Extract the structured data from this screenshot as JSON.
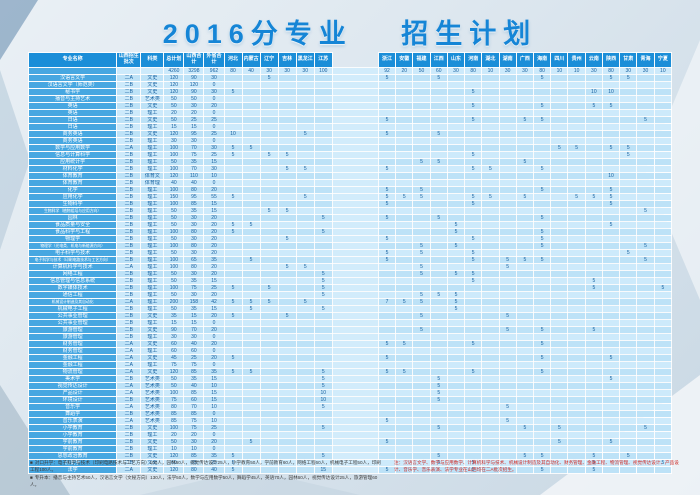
{
  "title": {
    "part1": "2016分专业",
    "part2": "招生计划"
  },
  "colors": {
    "title_blue": "#1585d6",
    "header_bg": "#1b8ed8",
    "name_col_bg": "#47a7e1",
    "row_light": "#cdeafb",
    "row_dark": "#bde2f7",
    "cell_text": "#155f9e",
    "red_note": "#cf2b26"
  },
  "table": {
    "fixed_headers": [
      "专业名称",
      "山西招生批次",
      "科类",
      "总计划",
      "山西合计",
      "外省合计"
    ],
    "province_group1": [
      "河北",
      "内蒙古",
      "辽宁",
      "吉林",
      "黑龙江",
      "江苏"
    ],
    "province_group2": [
      "浙江",
      "安徽",
      "福建",
      "江西",
      "山东",
      "河南",
      "湖北",
      "湖南",
      "广西",
      "海南",
      "四川",
      "贵州",
      "云南",
      "陕西",
      "甘肃",
      "青海",
      "宁夏"
    ],
    "total_row": {
      "name": "",
      "batch": "",
      "type": "",
      "total": "4260",
      "shanxi": "3298",
      "other": "962",
      "provinces": {
        "河北": "80",
        "内蒙古": "40",
        "辽宁": "30",
        "吉林": "30",
        "黑龙江": "30",
        "江苏": "100",
        "浙江": "92",
        "安徽": "20",
        "福建": "50",
        "江西": "60",
        "山东": "30",
        "河南": "80",
        "湖北": "10",
        "湖南": "30",
        "广西": "30",
        "海南": "80",
        "四川": "10",
        "贵州": "10",
        "云南": "30",
        "陕西": "80",
        "甘肃": "30",
        "青海": "30",
        "宁夏": "10"
      }
    },
    "rows": [
      {
        "name": "汉语言文学",
        "batch": "二A",
        "type": "文史",
        "total": "120",
        "shanxi": "90",
        "other": "30",
        "provinces": {
          "辽宁": "5",
          "浙江": "5",
          "江西": "5",
          "海南": "5",
          "陕西": "5",
          "甘肃": "5"
        }
      },
      {
        "name": "汉语言文学（师范类）",
        "batch": "二B",
        "type": "文史",
        "total": "120",
        "shanxi": "120",
        "other": "0",
        "provinces": {}
      },
      {
        "name": "秘书学",
        "batch": "二B",
        "type": "文史",
        "total": "120",
        "shanxi": "90",
        "other": "30",
        "provinces": {
          "河北": "5",
          "河南": "5",
          "云南": "10",
          "陕西": "10"
        }
      },
      {
        "name": "播音与主持艺术",
        "batch": "二B",
        "type": "艺术类",
        "total": "50",
        "shanxi": "50",
        "other": "0",
        "provinces": {}
      },
      {
        "name": "英语",
        "batch": "二B",
        "type": "文史",
        "total": "50",
        "shanxi": "30",
        "other": "20",
        "provinces": {
          "河南": "5",
          "海南": "5",
          "云南": "5",
          "陕西": "5"
        }
      },
      {
        "name": "英语",
        "batch": "二B",
        "type": "理工",
        "total": "20",
        "shanxi": "20",
        "other": "0",
        "provinces": {}
      },
      {
        "name": "日语",
        "batch": "二B",
        "type": "文史",
        "total": "50",
        "shanxi": "25",
        "other": "25",
        "provinces": {
          "浙江": "5",
          "河南": "5",
          "广西": "5",
          "海南": "5",
          "青海": "5"
        }
      },
      {
        "name": "日语",
        "batch": "二B",
        "type": "理工",
        "total": "15",
        "shanxi": "15",
        "other": "0",
        "provinces": {}
      },
      {
        "name": "商务英语",
        "batch": "二B",
        "type": "文史",
        "total": "120",
        "shanxi": "95",
        "other": "25",
        "provinces": {
          "河北": "10",
          "黑龙江": "5",
          "浙江": "5",
          "江西": "5"
        }
      },
      {
        "name": "商务英语",
        "batch": "二B",
        "type": "理工",
        "total": "30",
        "shanxi": "30",
        "other": "0",
        "provinces": {}
      },
      {
        "name": "数学与应用数学",
        "batch": "二A",
        "type": "理工",
        "total": "100",
        "shanxi": "70",
        "other": "30",
        "provinces": {
          "河北": "5",
          "内蒙古": "5",
          "四川": "5",
          "贵州": "5",
          "陕西": "5",
          "甘肃": "5"
        }
      },
      {
        "name": "信息与计算科学",
        "batch": "二B",
        "type": "理工",
        "total": "100",
        "shanxi": "75",
        "other": "25",
        "provinces": {
          "河北": "5",
          "辽宁": "5",
          "吉林": "5",
          "河南": "5",
          "甘肃": "5"
        }
      },
      {
        "name": "应用统计学",
        "batch": "二B",
        "type": "理工",
        "total": "50",
        "shanxi": "35",
        "other": "15",
        "provinces": {
          "福建": "5",
          "江西": "5",
          "广西": "5"
        }
      },
      {
        "name": "材料化学",
        "batch": "二B",
        "type": "理工",
        "total": "100",
        "shanxi": "70",
        "other": "30",
        "provinces": {
          "吉林": "5",
          "黑龙江": "5",
          "浙江": "5",
          "河南": "5",
          "湖北": "5",
          "海南": "5"
        }
      },
      {
        "name": "体育教育",
        "batch": "二B",
        "type": "体育文",
        "total": "120",
        "shanxi": "110",
        "other": "10",
        "provinces": {
          "陕西": "10"
        }
      },
      {
        "name": "体育教育",
        "batch": "二B",
        "type": "体育理",
        "total": "40",
        "shanxi": "40",
        "other": "0",
        "provinces": {}
      },
      {
        "name": "化学",
        "batch": "二B",
        "type": "理工",
        "total": "100",
        "shanxi": "80",
        "other": "20",
        "provinces": {
          "浙江": "5",
          "福建": "5",
          "海南": "5",
          "陕西": "5"
        }
      },
      {
        "name": "应用化学",
        "batch": "二B",
        "type": "理工",
        "total": "150",
        "shanxi": "95",
        "other": "55",
        "provinces": {
          "河北": "5",
          "黑龙江": "5",
          "浙江": "5",
          "安徽": "5",
          "福建": "5",
          "河南": "5",
          "湖北": "5",
          "广西": "5",
          "贵州": "5",
          "云南": "5",
          "陕西": "5"
        }
      },
      {
        "name": "生物科学",
        "batch": "二B",
        "type": "理工",
        "total": "100",
        "shanxi": "85",
        "other": "15",
        "provinces": {
          "浙江": "5",
          "河南": "5",
          "陕西": "5"
        }
      },
      {
        "name": "生物科学（植物组培与应用方向）",
        "batch": "二B",
        "type": "理工",
        "total": "50",
        "shanxi": "35",
        "other": "15",
        "provinces": {
          "辽宁": "5",
          "吉林": "5",
          "青海": "5"
        }
      },
      {
        "name": "园林",
        "batch": "二B",
        "type": "理工",
        "total": "50",
        "shanxi": "30",
        "other": "20",
        "provinces": {
          "江苏": "5",
          "浙江": "5",
          "江西": "5",
          "海南": "5"
        }
      },
      {
        "name": "食品质量与安全",
        "batch": "二B",
        "type": "理工",
        "total": "50",
        "shanxi": "30",
        "other": "20",
        "provinces": {
          "河北": "5",
          "内蒙古": "5",
          "山东": "5",
          "陕西": "5"
        }
      },
      {
        "name": "食品科学与工程",
        "batch": "二B",
        "type": "理工",
        "total": "100",
        "shanxi": "80",
        "other": "20",
        "provinces": {
          "河北": "5",
          "江苏": "5",
          "山东": "5",
          "海南": "5"
        }
      },
      {
        "name": "物理学",
        "batch": "二B",
        "type": "理工",
        "total": "50",
        "shanxi": "30",
        "other": "20",
        "provinces": {
          "吉林": "5",
          "浙江": "5",
          "河南": "5",
          "海南": "5"
        }
      },
      {
        "name": "物理学（光电类、机电与新能源方向）",
        "batch": "二B",
        "type": "理工",
        "total": "100",
        "shanxi": "80",
        "other": "20",
        "provinces": {
          "福建": "5",
          "山东": "5",
          "海南": "5",
          "青海": "5"
        }
      },
      {
        "name": "电子科学与技术",
        "batch": "二B",
        "type": "理工",
        "total": "50",
        "shanxi": "30",
        "other": "20",
        "provinces": {
          "浙江": "5",
          "福建": "5",
          "河南": "5",
          "甘肃": "5"
        }
      },
      {
        "name": "电子科学与技术（印刷电路技术与工艺方向）",
        "batch": "二B",
        "type": "理工",
        "total": "100",
        "shanxi": "65",
        "other": "35",
        "provinces": {
          "内蒙古": "5",
          "浙江": "5",
          "河南": "5",
          "湖南": "5",
          "广西": "5",
          "海南": "5",
          "青海": "5"
        }
      },
      {
        "name": "计算机科学与技术",
        "batch": "二A",
        "type": "理工",
        "total": "100",
        "shanxi": "80",
        "other": "20",
        "provinces": {
          "吉林": "5",
          "黑龙江": "5",
          "福建": "5",
          "湖南": "5"
        }
      },
      {
        "name": "网络工程",
        "batch": "二B",
        "type": "理工",
        "total": "50",
        "shanxi": "30",
        "other": "20",
        "provinces": {
          "江苏": "5",
          "福建": "5",
          "山东": "5",
          "河南": "5"
        }
      },
      {
        "name": "信息管理与信息系统",
        "batch": "二B",
        "type": "理工",
        "total": "50",
        "shanxi": "35",
        "other": "15",
        "provinces": {
          "江苏": "5",
          "河南": "5",
          "云南": "5"
        }
      },
      {
        "name": "数字媒体技术",
        "batch": "二B",
        "type": "理工",
        "total": "100",
        "shanxi": "75",
        "other": "25",
        "provinces": {
          "河北": "5",
          "辽宁": "5",
          "江苏": "5",
          "云南": "5",
          "宁夏": "5"
        }
      },
      {
        "name": "通信工程",
        "batch": "二B",
        "type": "理工",
        "total": "50",
        "shanxi": "30",
        "other": "20",
        "provinces": {
          "江苏": "5",
          "福建": "5",
          "江西": "5",
          "山东": "5"
        }
      },
      {
        "name": "机械设计制造及其自动化",
        "batch": "二A",
        "type": "理工",
        "total": "200",
        "shanxi": "158",
        "other": "42",
        "provinces": {
          "河北": "5",
          "内蒙古": "5",
          "辽宁": "5",
          "黑龙江": "5",
          "浙江": "7",
          "安徽": "5",
          "福建": "5",
          "山东": "5"
        }
      },
      {
        "name": "机械电子工程",
        "batch": "二B",
        "type": "理工",
        "total": "50",
        "shanxi": "35",
        "other": "15",
        "provinces": {
          "内蒙古": "5",
          "江苏": "5",
          "山东": "5"
        }
      },
      {
        "name": "公共事业管理",
        "batch": "二B",
        "type": "文史",
        "total": "35",
        "shanxi": "15",
        "other": "20",
        "provinces": {
          "河北": "5",
          "吉林": "5",
          "福建": "5",
          "湖南": "5"
        }
      },
      {
        "name": "公共事业管理",
        "batch": "二B",
        "type": "理工",
        "total": "15",
        "shanxi": "15",
        "other": "0",
        "provinces": {}
      },
      {
        "name": "旅游管理",
        "batch": "二B",
        "type": "文史",
        "total": "90",
        "shanxi": "70",
        "other": "20",
        "provinces": {
          "福建": "5",
          "湖南": "5",
          "海南": "5",
          "云南": "5"
        }
      },
      {
        "name": "旅游管理",
        "batch": "二B",
        "type": "理工",
        "total": "30",
        "shanxi": "30",
        "other": "0",
        "provinces": {}
      },
      {
        "name": "财务管理",
        "batch": "二A",
        "type": "文史",
        "total": "60",
        "shanxi": "40",
        "other": "20",
        "provinces": {
          "浙江": "5",
          "安徽": "5",
          "河南": "5",
          "海南": "5"
        }
      },
      {
        "name": "财务管理",
        "batch": "二A",
        "type": "理工",
        "total": "60",
        "shanxi": "60",
        "other": "0",
        "provinces": {}
      },
      {
        "name": "金融工程",
        "batch": "二A",
        "type": "文史",
        "total": "45",
        "shanxi": "25",
        "other": "20",
        "provinces": {
          "河北": "5",
          "浙江": "5",
          "海南": "5",
          "陕西": "5"
        }
      },
      {
        "name": "金融工程",
        "batch": "二A",
        "type": "理工",
        "total": "75",
        "shanxi": "75",
        "other": "0",
        "provinces": {}
      },
      {
        "name": "物流管理",
        "batch": "二A",
        "type": "文史",
        "total": "120",
        "shanxi": "85",
        "other": "35",
        "provinces": {
          "河北": "5",
          "内蒙古": "5",
          "江苏": "5",
          "浙江": "5",
          "安徽": "5",
          "河南": "5",
          "海南": "5"
        }
      },
      {
        "name": "美术学",
        "batch": "二B",
        "type": "艺术类",
        "total": "50",
        "shanxi": "35",
        "other": "15",
        "provinces": {
          "江苏": "5",
          "江西": "5",
          "陕西": "5"
        }
      },
      {
        "name": "视觉传达设计",
        "batch": "二A",
        "type": "艺术类",
        "total": "50",
        "shanxi": "40",
        "other": "10",
        "provinces": {
          "江苏": "5",
          "江西": "5"
        }
      },
      {
        "name": "产品设计",
        "batch": "二A",
        "type": "艺术类",
        "total": "100",
        "shanxi": "85",
        "other": "15",
        "provinces": {
          "江苏": "10",
          "江西": "5"
        }
      },
      {
        "name": "环境设计",
        "batch": "二B",
        "type": "艺术类",
        "total": "75",
        "shanxi": "60",
        "other": "15",
        "provinces": {
          "江苏": "10",
          "江西": "5"
        }
      },
      {
        "name": "音乐学",
        "batch": "二A",
        "type": "艺术类",
        "total": "80",
        "shanxi": "70",
        "other": "10",
        "provinces": {
          "江苏": "5",
          "湖南": "5"
        }
      },
      {
        "name": "舞蹈学",
        "batch": "二B",
        "type": "艺术类",
        "total": "85",
        "shanxi": "85",
        "other": "0",
        "provinces": {}
      },
      {
        "name": "音乐表演",
        "batch": "二A",
        "type": "艺术类",
        "total": "85",
        "shanxi": "75",
        "other": "10",
        "provinces": {
          "浙江": "5",
          "湖南": "5"
        }
      },
      {
        "name": "小学教育",
        "batch": "二B",
        "type": "文史",
        "total": "100",
        "shanxi": "75",
        "other": "25",
        "provinces": {
          "江苏": "5",
          "江西": "5",
          "广西": "5",
          "四川": "5",
          "青海": "5"
        }
      },
      {
        "name": "小学教育",
        "batch": "二B",
        "type": "理工",
        "total": "20",
        "shanxi": "20",
        "other": "0",
        "provinces": {}
      },
      {
        "name": "学前教育",
        "batch": "二B",
        "type": "文史",
        "total": "50",
        "shanxi": "30",
        "other": "20",
        "provinces": {
          "内蒙古": "5",
          "浙江": "5",
          "四川": "5",
          "陕西": "5"
        }
      },
      {
        "name": "学前教育",
        "batch": "二B",
        "type": "理工",
        "total": "10",
        "shanxi": "10",
        "other": "0",
        "provinces": {}
      },
      {
        "name": "思想政治教育",
        "batch": "二B",
        "type": "文史",
        "total": "120",
        "shanxi": "85",
        "other": "35",
        "provinces": {
          "河北": "5",
          "江苏": "5",
          "江西": "5",
          "广西": "5",
          "海南": "5",
          "云南": "5",
          "甘肃": "5"
        }
      },
      {
        "name": "历史学",
        "batch": "二B",
        "type": "文史",
        "total": "60",
        "shanxi": "35",
        "other": "25",
        "provinces": {
          "河北": "5",
          "江西": "5",
          "河南": "5",
          "云南": "5",
          "宁夏": "5"
        }
      },
      {
        "name": "法学",
        "batch": "二A",
        "type": "文史",
        "total": "120",
        "shanxi": "80",
        "other": "40",
        "provinces": {
          "河北": "5",
          "江苏": "15",
          "浙江": "5",
          "河南": "5",
          "海南": "5",
          "云南": "5"
        }
      }
    ]
  },
  "notes": {
    "bullet": "■",
    "note1": "对口升学：电子科学与技术（印刷电路技术与工艺方向）100人，园林60人，视觉传达设计25人，小学教育50人，学前教育60人，网络工程60人，机械电子工程50人，印刷工程100人。",
    "note2": "专升本：播音与主持艺术50人，汉语言文学（文秘方向）130人，法学50人，数学与应用数学50人，舞蹈学45人，英语70人，园林60人，视觉传达设计25人，旅游管理60人。",
    "red_note": "注：汉语言文学、数学与应用数学、计算机科学与技术、机械设计制造及其自动化、财务管理、金融工程、物流管理、视觉传达设计、产品设计、音乐学、音乐表演、法学专业在山西均在二A批次招生。"
  }
}
